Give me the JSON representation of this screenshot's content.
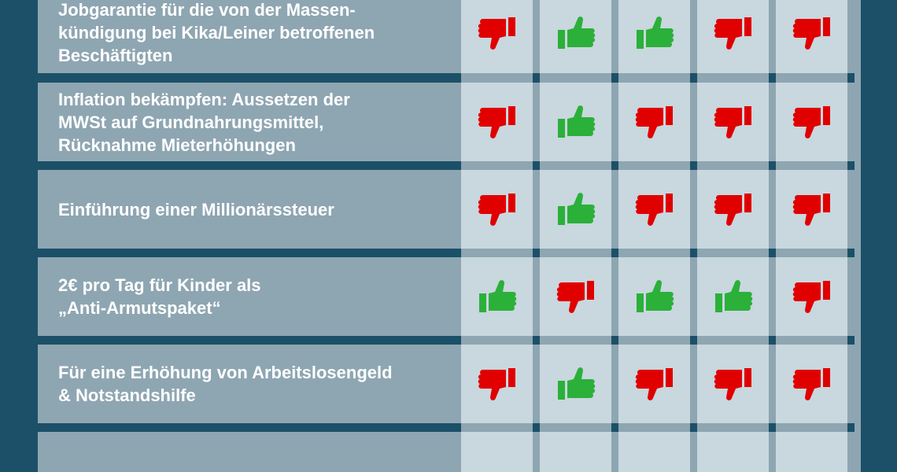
{
  "rows": [
    {
      "label": "Jobgarantie für die von der Massen-\nkündigung bei Kika/Leiner betroffenen\nBeschäftigten",
      "votes": [
        "down",
        "up",
        "up",
        "down",
        "down"
      ]
    },
    {
      "label": "Inflation bekämpfen: Aussetzen der\nMWSt auf Grundnahrungsmittel,\nRücknahme Mieterhöhungen",
      "votes": [
        "down",
        "up",
        "down",
        "down",
        "down"
      ]
    },
    {
      "label": "Einführung einer Millionärssteuer",
      "votes": [
        "down",
        "up",
        "down",
        "down",
        "down"
      ]
    },
    {
      "label": "2€ pro Tag für Kinder als\n„Anti-Armutspaket“",
      "votes": [
        "up",
        "down",
        "up",
        "up",
        "down"
      ]
    },
    {
      "label": "Für eine Erhöhung von Arbeitslosengeld\n& Notstandshilfe",
      "votes": [
        "down",
        "up",
        "down",
        "down",
        "down"
      ]
    },
    {
      "label": "",
      "votes": []
    }
  ],
  "colors": {
    "up": "#2bb03a",
    "down": "#e00000",
    "background": "#1b5068",
    "label_cell": "#8ea6b2",
    "vote_cell": "#c9d7de"
  },
  "icons": {
    "up": "thumbs-up-icon",
    "down": "thumbs-down-icon"
  }
}
